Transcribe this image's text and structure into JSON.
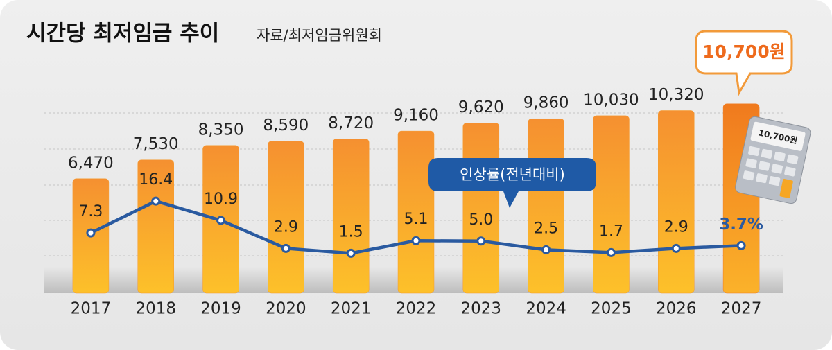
{
  "chart_data": {
    "type": "bar-line",
    "title": "시간당 최저임금 추이",
    "subtitle": "자료/최저임금위원회",
    "categories": [
      "2017",
      "2018",
      "2019",
      "2020",
      "2021",
      "2022",
      "2023",
      "2024",
      "2025",
      "2026",
      "2027"
    ],
    "series": [
      {
        "type": "bar",
        "color": "#f59a2c",
        "highlight_color": "#f07a1e",
        "values": [
          6470,
          7530,
          8350,
          8590,
          8720,
          9160,
          9620,
          9860,
          10030,
          10320,
          10700
        ],
        "value_labels": [
          "6,470",
          "7,530",
          "8,350",
          "8,590",
          "8,720",
          "9,160",
          "9,620",
          "9,860",
          "10,030",
          "10,320",
          "10,700원"
        ]
      },
      {
        "type": "line",
        "name": "인상률(전년대비)",
        "axis": "y2",
        "color": "#2a5aa0",
        "values": [
          7.3,
          16.4,
          10.9,
          2.9,
          1.5,
          5.1,
          5.0,
          2.5,
          1.7,
          2.9,
          3.7
        ],
        "value_labels": [
          "7.3",
          "16.4",
          "10.9",
          "2.9",
          "1.5",
          "5.1",
          "5.0",
          "2.5",
          "1.7",
          "2.9",
          "3.7%"
        ]
      }
    ],
    "ylim": [
      0,
      12650
    ],
    "y2lim": [
      0,
      20
    ]
  }
}
